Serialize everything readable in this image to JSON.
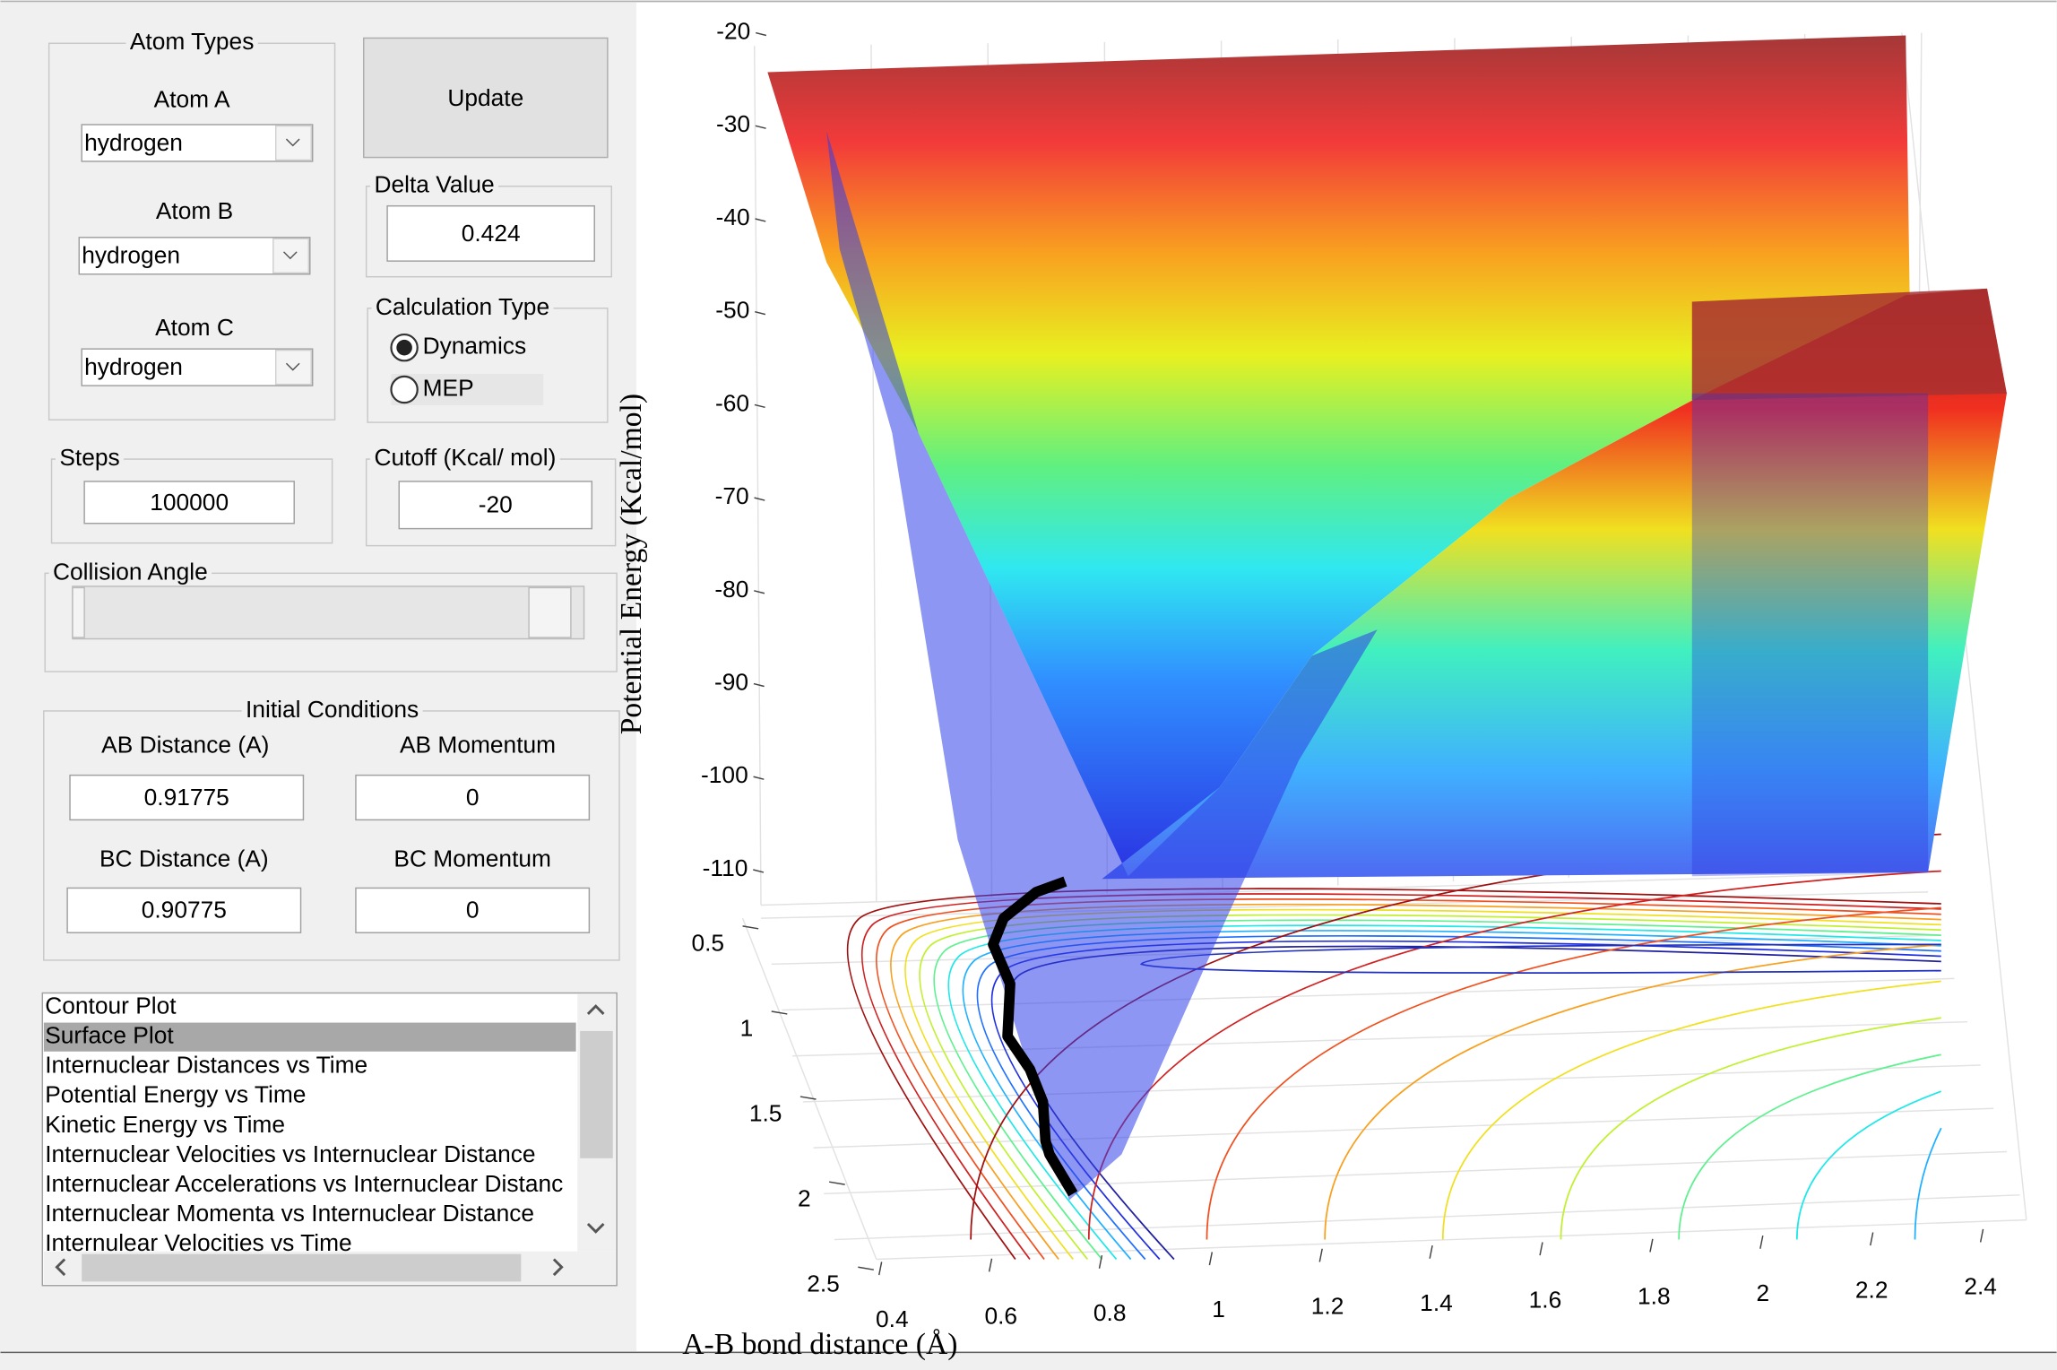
{
  "panel": {
    "atom_types": {
      "title": "Atom Types",
      "atom_a_label": "Atom A",
      "atom_a": "hydrogen",
      "atom_b_label": "Atom B",
      "atom_b": "hydrogen",
      "atom_c_label": "Atom C",
      "atom_c": "hydrogen"
    },
    "update": "Update",
    "delta_value": {
      "label": "Delta Value",
      "value": "0.424"
    },
    "calculation_type": {
      "label": "Calculation Type",
      "options": [
        "Dynamics",
        "MEP"
      ]
    },
    "steps": {
      "label": "Steps",
      "value": "100000"
    },
    "cutoff": {
      "label": "Cutoff (Kcal/ mol)",
      "value": "-20"
    },
    "collision_angle": {
      "label": "Collision Angle"
    },
    "initial_conditions": {
      "title": "Initial Conditions",
      "ab_distance_label": "AB Distance (A)",
      "ab_distance": "0.91775",
      "ab_momentum_label": "AB Momentum",
      "ab_momentum": "0",
      "bc_distance_label": "BC Distance (A)",
      "bc_distance": "0.90775",
      "bc_momentum_label": "BC Momentum",
      "bc_momentum": "0"
    },
    "plot_list": [
      "Contour Plot",
      "Surface Plot",
      "Internuclear Distances vs Time",
      "Potential Energy vs Time",
      "Kinetic Energy vs Time",
      "Internuclear Velocities vs Internuclear Distance",
      "Internuclear Accelerations vs Internuclear Distanc",
      "Internuclear Momenta vs Internuclear Distance",
      "Internulear Velocities vs Time"
    ]
  },
  "plot": {
    "zlabel": "Potential Energy (Kcal/mol)",
    "xlabel": "A-B bond distance (Å)",
    "zticks": [
      -20,
      -30,
      -40,
      -50,
      -60,
      -70,
      -80,
      -90,
      -100,
      -110
    ],
    "xticks": [
      0.4,
      0.6,
      0.8,
      1,
      1.2,
      1.4,
      1.6,
      1.8,
      2,
      2.2,
      2.4
    ],
    "yticks": [
      0.5,
      1,
      1.5,
      2,
      2.5
    ]
  }
}
